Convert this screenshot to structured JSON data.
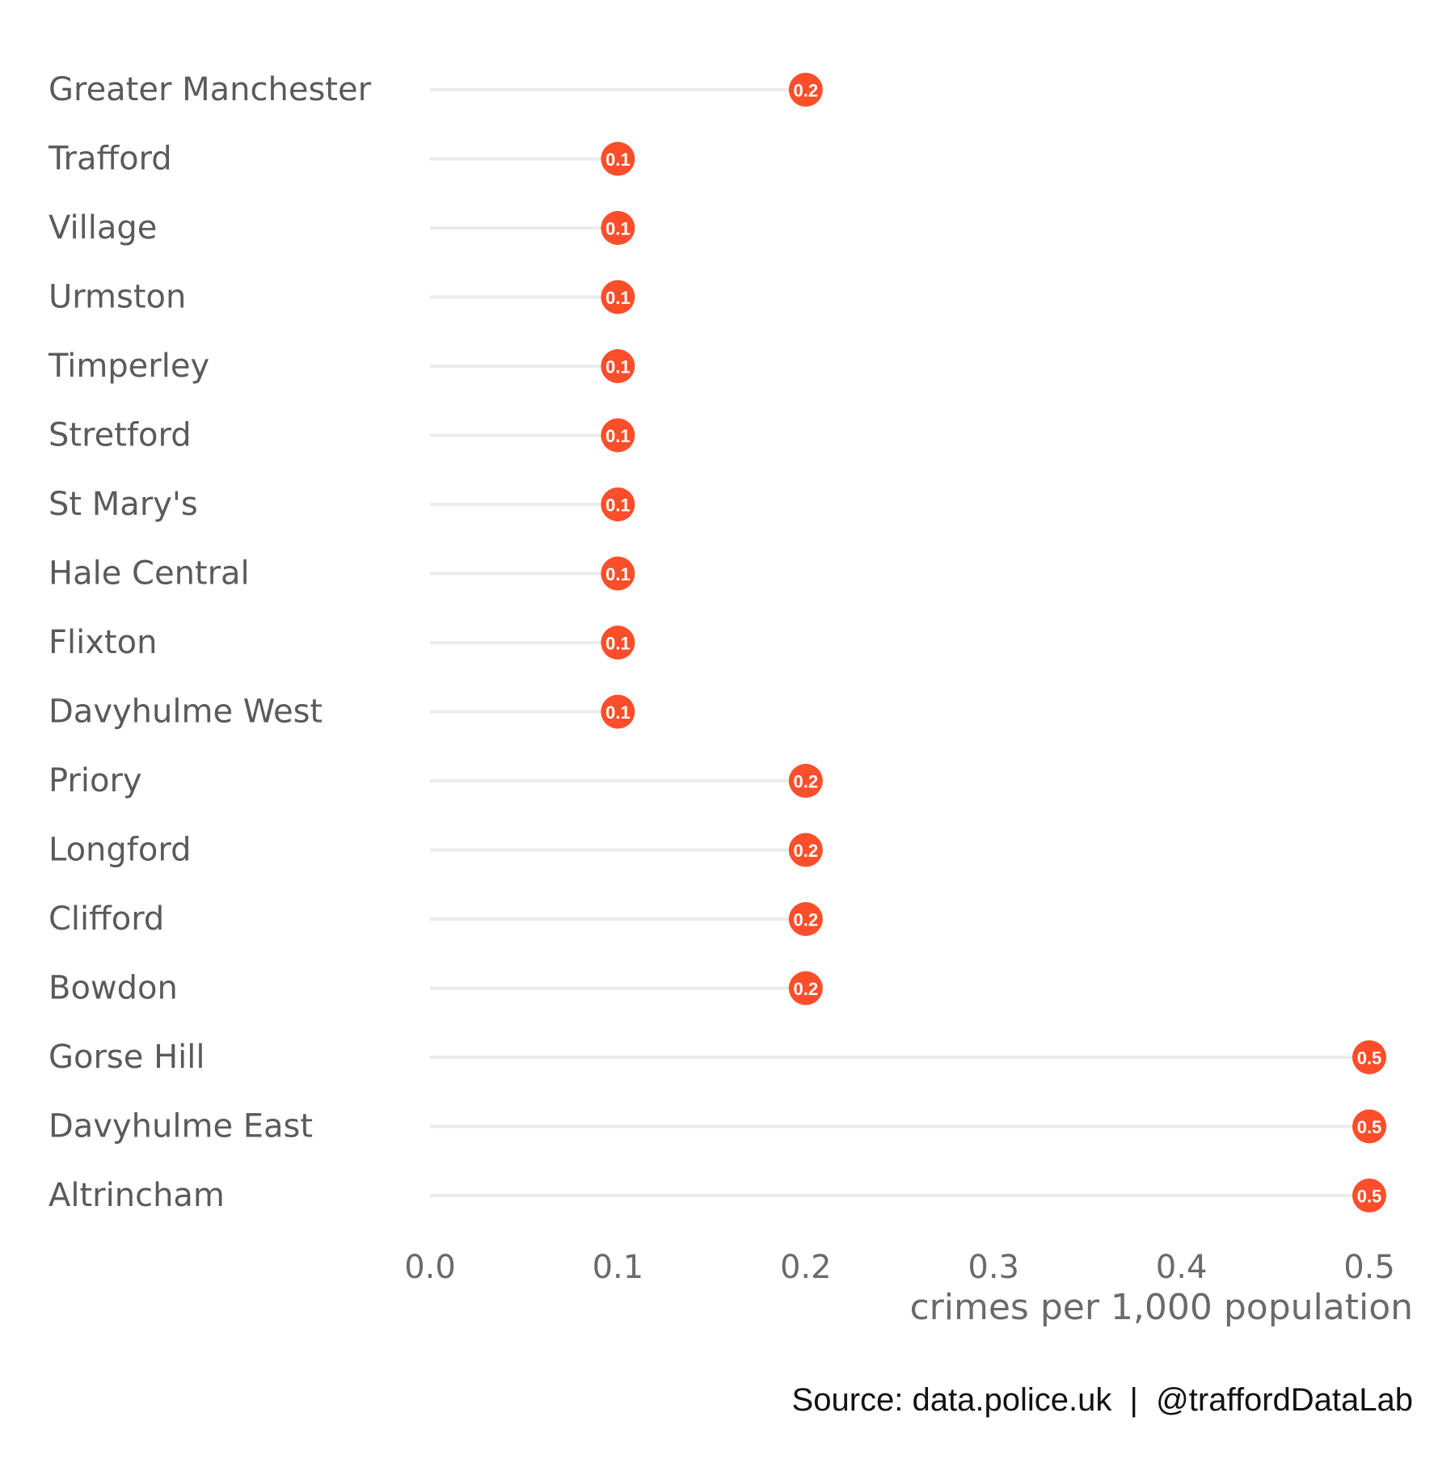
{
  "chart_data": {
    "type": "lollipop",
    "categories": [
      "Greater Manchester",
      "Trafford",
      "Village",
      "Urmston",
      "Timperley",
      "Stretford",
      "St Mary's",
      "Hale Central",
      "Flixton",
      "Davyhulme West",
      "Priory",
      "Longford",
      "Clifford",
      "Bowdon",
      "Gorse Hill",
      "Davyhulme East",
      "Altrincham"
    ],
    "values": [
      0.2,
      0.1,
      0.1,
      0.1,
      0.1,
      0.1,
      0.1,
      0.1,
      0.1,
      0.1,
      0.2,
      0.2,
      0.2,
      0.2,
      0.5,
      0.5,
      0.5
    ],
    "value_labels": [
      "0.2",
      "0.1",
      "0.1",
      "0.1",
      "0.1",
      "0.1",
      "0.1",
      "0.1",
      "0.1",
      "0.1",
      "0.2",
      "0.2",
      "0.2",
      "0.2",
      "0.5",
      "0.5",
      "0.5"
    ],
    "xlabel": "crimes per 1,000 population",
    "xlim": [
      0,
      0.5
    ],
    "xticks": [
      0.0,
      0.1,
      0.2,
      0.3,
      0.4,
      0.5
    ],
    "xtick_labels": [
      "0.0",
      "0.1",
      "0.2",
      "0.3",
      "0.4",
      "0.5"
    ],
    "grid": false,
    "point_color": "#FC4E2A",
    "stem_color": "#EBEBEB"
  },
  "caption": "Source: data.police.uk  |  @traffordDataLab"
}
